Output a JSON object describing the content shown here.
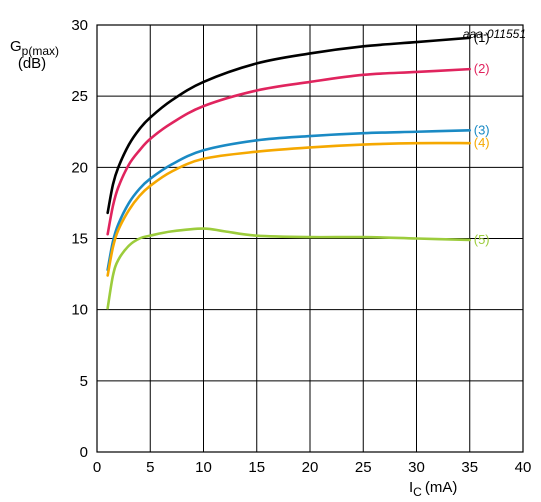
{
  "chart_data": {
    "type": "line",
    "code": "aaa-011551",
    "ylabel": {
      "main": "G",
      "sub": "p(max)",
      "unit": "(dB)"
    },
    "xlabel": {
      "main": "I",
      "sub": "C",
      "unit": "(mA)"
    },
    "xlim": [
      0,
      40
    ],
    "ylim": [
      0,
      30
    ],
    "xticks": [
      0,
      5,
      10,
      15,
      20,
      25,
      30,
      35,
      40
    ],
    "yticks": [
      0,
      5,
      10,
      15,
      20,
      25,
      30
    ],
    "grid": true,
    "series": [
      {
        "name": "(1)",
        "color": "#000000",
        "x": [
          1,
          1.5,
          2,
          3,
          4,
          5,
          7,
          10,
          15,
          20,
          25,
          30,
          35
        ],
        "y": [
          16.8,
          18.8,
          20.0,
          21.6,
          22.7,
          23.5,
          24.7,
          26.0,
          27.3,
          28.0,
          28.5,
          28.8,
          29.1
        ]
      },
      {
        "name": "(2)",
        "color": "#e0245e",
        "x": [
          1,
          1.5,
          2,
          3,
          4,
          5,
          7,
          10,
          15,
          20,
          25,
          30,
          35
        ],
        "y": [
          15.3,
          17.3,
          18.6,
          20.2,
          21.2,
          22.0,
          23.1,
          24.3,
          25.4,
          26.0,
          26.5,
          26.7,
          26.9
        ]
      },
      {
        "name": "(3)",
        "color": "#1a8ac4",
        "x": [
          1,
          1.5,
          2,
          3,
          4,
          5,
          7,
          10,
          15,
          20,
          25,
          30,
          35
        ],
        "y": [
          12.8,
          14.8,
          16.0,
          17.5,
          18.5,
          19.2,
          20.2,
          21.2,
          21.9,
          22.2,
          22.4,
          22.5,
          22.6
        ]
      },
      {
        "name": "(4)",
        "color": "#f5a800",
        "x": [
          1,
          1.5,
          2,
          3,
          4,
          5,
          7,
          10,
          15,
          20,
          25,
          30,
          35
        ],
        "y": [
          12.4,
          14.4,
          15.6,
          17.0,
          18.0,
          18.7,
          19.7,
          20.6,
          21.1,
          21.4,
          21.6,
          21.7,
          21.7
        ]
      },
      {
        "name": "(5)",
        "color": "#9ccc3c",
        "x": [
          1,
          1.5,
          2,
          3,
          4,
          5,
          7,
          10,
          12,
          15,
          20,
          25,
          30,
          35
        ],
        "y": [
          10.1,
          12.4,
          13.5,
          14.5,
          15.0,
          15.2,
          15.5,
          15.7,
          15.5,
          15.2,
          15.1,
          15.1,
          15.0,
          14.9
        ]
      }
    ]
  }
}
